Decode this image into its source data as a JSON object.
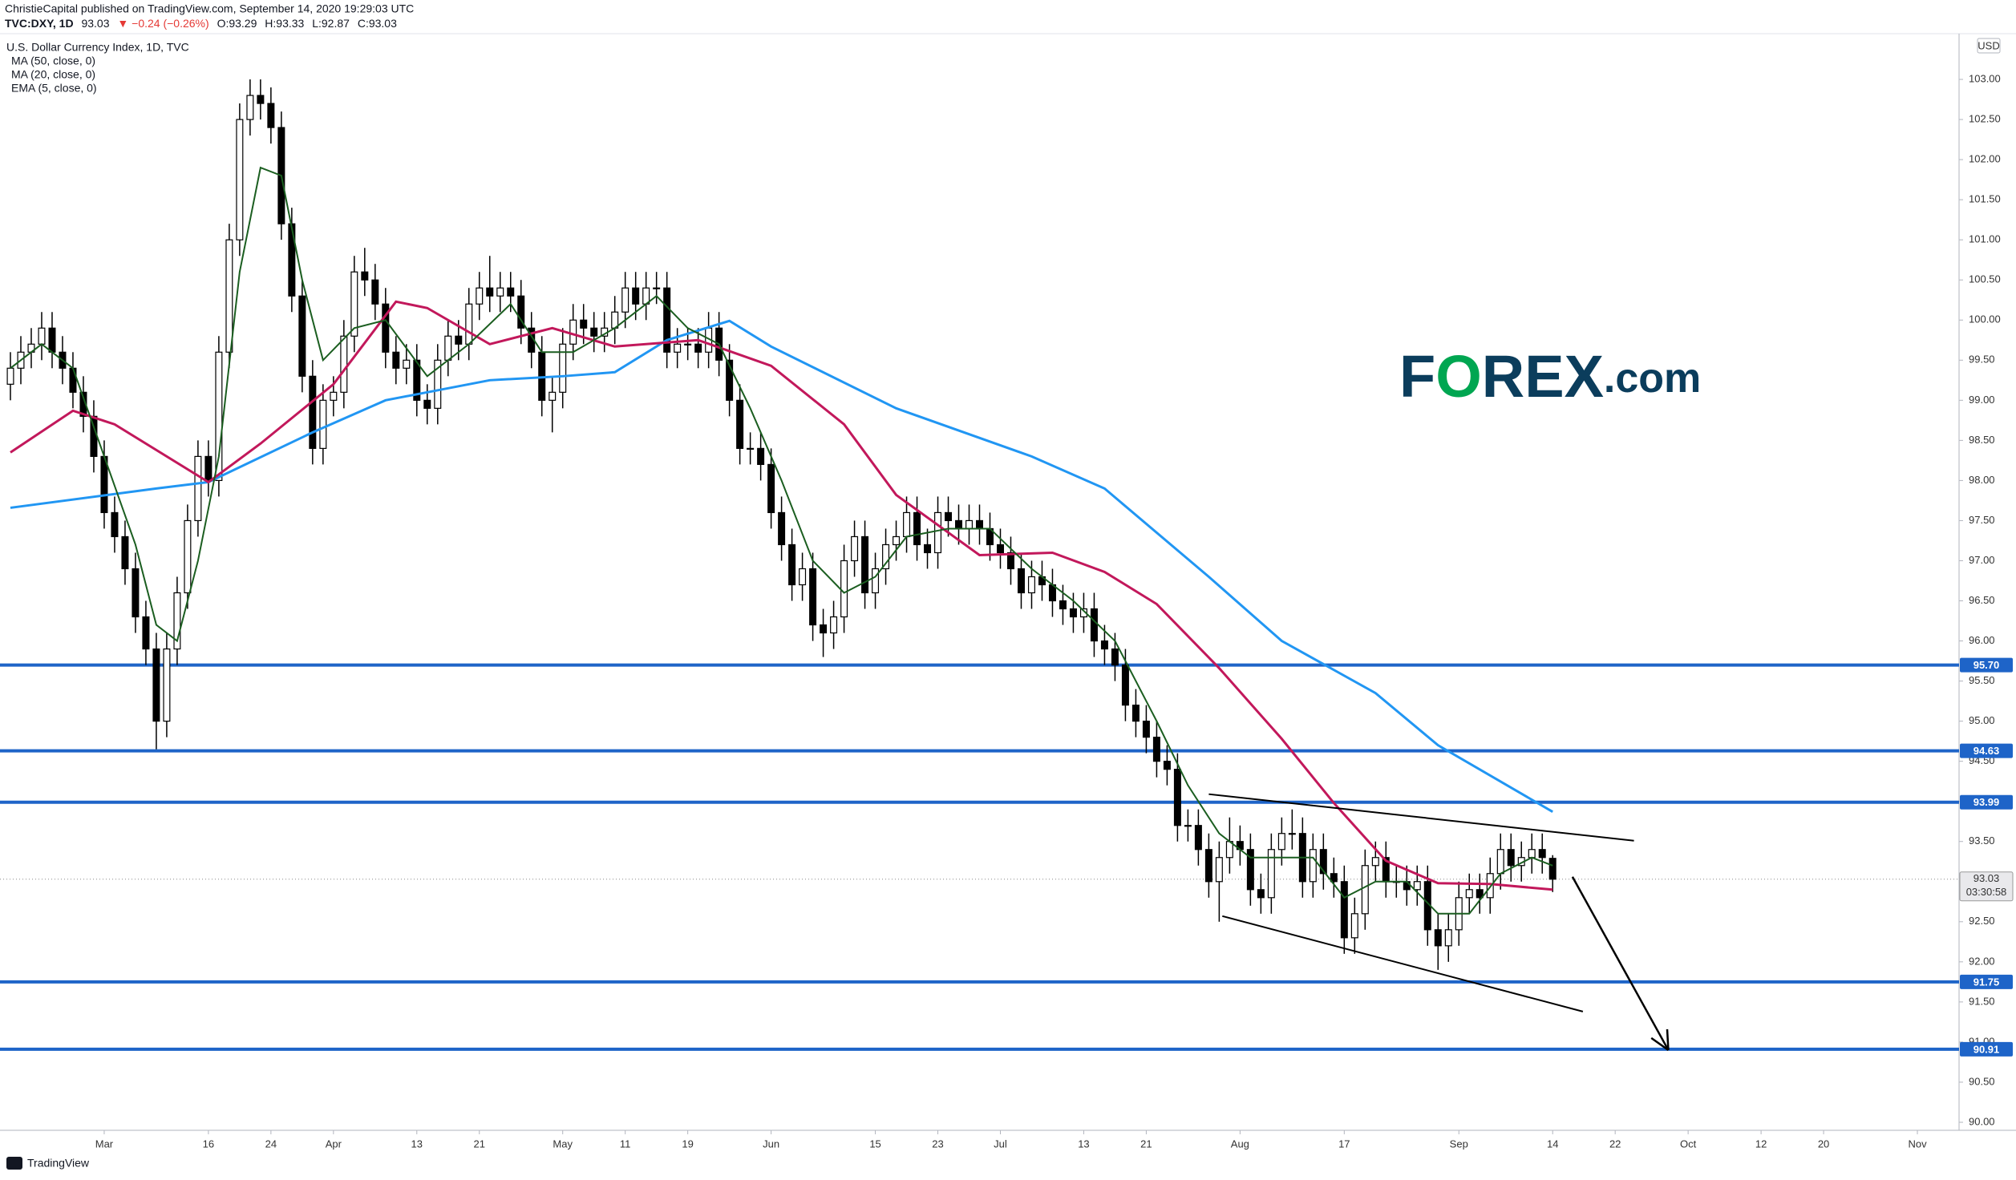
{
  "header": {
    "line1": "ChristieCapital published on TradingView.com, September 14, 2020 19:29:03 UTC",
    "line2": [
      "TVC:DXY, 1D",
      "93.03",
      "▼ −0.24 (−0.26%)",
      "O:93.29",
      "H:93.33",
      "L:92.87",
      "C:93.03"
    ]
  },
  "logo": [
    "F",
    "O",
    "REX",
    ".com"
  ],
  "footer": "TradingView",
  "chart_data": {
    "type": "candlestick",
    "title": "U.S. Dollar Currency Index, 1D, TVC",
    "currency": "USD",
    "up_color": "#ffffff",
    "down_color": "#000000",
    "open": [
      99.2,
      99.4,
      99.6,
      99.7,
      99.9,
      99.6,
      99.4,
      99.1,
      98.8,
      98.3,
      97.6,
      97.3,
      96.9,
      96.3,
      95.9,
      95,
      95.9,
      96.6,
      97.5,
      98.3,
      98,
      99.6,
      101,
      102.5,
      102.8,
      102.7,
      102.4,
      101.2,
      100.3,
      99.3,
      98.4,
      99,
      99.1,
      99.8,
      100.6,
      100.5,
      100.2,
      99.6,
      99.4,
      99.5,
      99,
      98.9,
      99.5,
      99.8,
      99.7,
      100.2,
      100.4,
      100.3,
      100.4,
      100.3,
      99.9,
      99.6,
      99,
      99.1,
      99.7,
      100,
      99.9,
      99.8,
      99.9,
      100.1,
      100.4,
      100.2,
      100.4,
      100.4,
      99.6,
      99.7,
      99.7,
      99.6,
      99.9,
      99.5,
      99,
      98.4,
      98.4,
      98.2,
      97.6,
      97.2,
      96.7,
      96.9,
      96.2,
      96.1,
      96.3,
      97,
      97.3,
      96.6,
      96.9,
      97.2,
      97.3,
      97.6,
      97.2,
      97.1,
      97.6,
      97.5,
      97.4,
      97.5,
      97.4,
      97.2,
      97.1,
      96.9,
      96.6,
      96.8,
      96.7,
      96.5,
      96.4,
      96.3,
      96.4,
      96,
      95.9,
      95.7,
      95.2,
      95,
      94.8,
      94.5,
      94.4,
      93.7,
      93.7,
      93.4,
      93,
      93.3,
      93.5,
      93.4,
      92.9,
      92.8,
      93.4,
      93.6,
      93.6,
      93,
      93.4,
      93.1,
      93,
      92.3,
      92.6,
      93.2,
      93.3,
      93,
      93,
      92.9,
      93,
      92.4,
      92.2,
      92.4,
      92.8,
      92.9,
      92.8,
      93.1,
      93.4,
      93.2,
      93.3,
      93.4,
      93.29
    ],
    "high": [
      99.6,
      99.8,
      99.9,
      100.1,
      100.1,
      99.8,
      99.6,
      99.3,
      99,
      98.5,
      97.8,
      97.5,
      97.1,
      96.5,
      96.1,
      96.1,
      96.8,
      97.7,
      98.5,
      98.5,
      99.8,
      101.2,
      102.7,
      103,
      103,
      102.9,
      102.6,
      101.4,
      100.5,
      99.5,
      99.2,
      99.3,
      100,
      100.8,
      100.9,
      100.7,
      100.4,
      99.8,
      99.7,
      99.7,
      99.2,
      99.7,
      100,
      100,
      100.4,
      100.6,
      100.8,
      100.6,
      100.6,
      100.5,
      100.1,
      99.8,
      99.3,
      99.9,
      100.2,
      100.2,
      100.1,
      100.1,
      100.3,
      100.6,
      100.6,
      100.6,
      100.6,
      100.6,
      99.9,
      99.9,
      99.9,
      100.1,
      100.1,
      99.7,
      99.2,
      98.6,
      98.6,
      98.4,
      97.8,
      97.4,
      97.1,
      97.1,
      96.4,
      96.5,
      97.2,
      97.5,
      97.5,
      97.1,
      97.4,
      97.5,
      97.8,
      97.8,
      97.4,
      97.8,
      97.8,
      97.7,
      97.7,
      97.7,
      97.6,
      97.4,
      97.3,
      97.1,
      97,
      97,
      96.9,
      96.7,
      96.6,
      96.6,
      96.6,
      96.2,
      96.1,
      95.9,
      95.4,
      95.2,
      95,
      94.7,
      94.6,
      93.9,
      93.9,
      93.6,
      93.5,
      93.8,
      93.7,
      93.6,
      93.1,
      93.6,
      93.8,
      93.9,
      93.8,
      93.6,
      93.6,
      93.3,
      93.2,
      92.8,
      93.4,
      93.5,
      93.5,
      93.2,
      93.2,
      93.2,
      93.2,
      92.6,
      92.6,
      93,
      93.1,
      93.1,
      93.3,
      93.6,
      93.6,
      93.5,
      93.6,
      93.6,
      93.33
    ],
    "low": [
      99,
      99.2,
      99.4,
      99.5,
      99.4,
      99.2,
      98.9,
      98.6,
      98.1,
      97.4,
      97.1,
      96.7,
      96.1,
      95.7,
      94.65,
      94.8,
      95.7,
      96.4,
      97.3,
      97.8,
      97.8,
      99.4,
      100.8,
      102.3,
      102.5,
      102.2,
      101,
      100.1,
      99.1,
      98.2,
      98.2,
      98.8,
      98.9,
      99.6,
      100.3,
      100,
      99.4,
      99.2,
      99.2,
      98.8,
      98.7,
      98.7,
      99.3,
      99.5,
      99.5,
      100,
      100.1,
      100.1,
      100.1,
      99.7,
      99.4,
      98.8,
      98.6,
      98.9,
      99.5,
      99.7,
      99.6,
      99.6,
      99.7,
      99.9,
      100,
      100,
      100.2,
      99.4,
      99.4,
      99.5,
      99.4,
      99.4,
      99.3,
      98.8,
      98.2,
      98.2,
      98,
      97.4,
      97,
      96.5,
      96.5,
      96,
      95.8,
      95.9,
      96.1,
      96.8,
      96.4,
      96.4,
      96.7,
      97,
      97.1,
      97,
      96.9,
      96.9,
      97.3,
      97.2,
      97.2,
      97.2,
      97,
      96.9,
      96.7,
      96.4,
      96.4,
      96.5,
      96.3,
      96.2,
      96.1,
      96.1,
      95.8,
      95.7,
      95.5,
      95,
      94.8,
      94.6,
      94.3,
      94.2,
      93.5,
      93.5,
      93.2,
      92.8,
      92.5,
      93.1,
      93.2,
      92.7,
      92.6,
      92.6,
      93.2,
      93.4,
      92.8,
      92.8,
      92.9,
      92.8,
      92.1,
      92.1,
      92.4,
      93,
      92.8,
      92.8,
      92.7,
      92.7,
      92.2,
      91.9,
      92,
      92.2,
      92.6,
      92.6,
      92.6,
      92.9,
      93,
      93,
      93.1,
      93.1,
      92.87
    ],
    "close": [
      99.4,
      99.6,
      99.7,
      99.9,
      99.6,
      99.4,
      99.1,
      98.8,
      98.3,
      97.6,
      97.3,
      96.9,
      96.3,
      95.9,
      95,
      95.9,
      96.6,
      97.5,
      98.3,
      98,
      99.6,
      101,
      102.5,
      102.8,
      102.7,
      102.4,
      101.2,
      100.3,
      99.3,
      98.4,
      99,
      99.1,
      99.8,
      100.6,
      100.5,
      100.2,
      99.6,
      99.4,
      99.5,
      99,
      98.9,
      99.5,
      99.8,
      99.7,
      100.2,
      100.4,
      100.3,
      100.4,
      100.3,
      99.9,
      99.6,
      99,
      99.1,
      99.7,
      100,
      99.9,
      99.8,
      99.9,
      100.1,
      100.4,
      100.2,
      100.4,
      100.4,
      99.6,
      99.7,
      99.7,
      99.6,
      99.9,
      99.5,
      99,
      98.4,
      98.4,
      98.2,
      97.6,
      97.2,
      96.7,
      96.9,
      96.2,
      96.1,
      96.3,
      97,
      97.3,
      96.6,
      96.9,
      97.2,
      97.3,
      97.6,
      97.2,
      97.1,
      97.6,
      97.5,
      97.4,
      97.5,
      97.4,
      97.2,
      97.1,
      96.9,
      96.6,
      96.8,
      96.7,
      96.5,
      96.4,
      96.3,
      96.4,
      96,
      95.9,
      95.7,
      95.2,
      95,
      94.8,
      94.5,
      94.4,
      93.7,
      93.7,
      93.4,
      93,
      93.3,
      93.5,
      93.4,
      92.9,
      92.8,
      93.4,
      93.6,
      93.6,
      93,
      93.4,
      93.1,
      93,
      92.3,
      92.6,
      93.2,
      93.3,
      93,
      93,
      92.9,
      93,
      92.4,
      92.2,
      92.4,
      92.8,
      92.9,
      92.8,
      93.1,
      93.4,
      93.2,
      93.3,
      93.4,
      93.3,
      93.03
    ],
    "lines": [
      {
        "name": "MA (50, close, 0)",
        "color": "#2196f3",
        "width": 3,
        "x": [
          0,
          14,
          19,
          29,
          36,
          46,
          53,
          58,
          63,
          69,
          73,
          85,
          98,
          105,
          115,
          122,
          131,
          137,
          148
        ],
        "values": [
          97.66,
          97.9,
          97.98,
          98.6,
          99.0,
          99.25,
          99.3,
          99.35,
          99.75,
          99.99,
          99.67,
          98.9,
          98.3,
          97.9,
          96.8,
          96.0,
          95.35,
          94.7,
          93.87
        ]
      },
      {
        "name": "MA (20, close, 0)",
        "color": "#c2185b",
        "width": 3,
        "x": [
          0,
          6,
          10,
          19,
          24,
          31,
          37,
          40,
          46,
          52,
          58,
          66,
          73,
          80,
          85,
          93,
          100,
          105,
          110,
          116,
          122,
          127,
          132,
          137,
          142,
          148
        ],
        "values": [
          98.35,
          98.87,
          98.7,
          97.98,
          98.46,
          99.2,
          100.23,
          100.15,
          99.7,
          99.9,
          99.67,
          99.75,
          99.43,
          98.7,
          97.82,
          97.07,
          97.1,
          96.86,
          96.46,
          95.66,
          94.78,
          93.98,
          93.26,
          92.98,
          92.97,
          92.9
        ]
      },
      {
        "name": "EMA (5, close, 0)",
        "color": "#1b5e20",
        "width": 2,
        "x": [
          0,
          3,
          6,
          9,
          12,
          14,
          16,
          18,
          20,
          22,
          24,
          26,
          28,
          30,
          33,
          36,
          40,
          44,
          48,
          51,
          54,
          58,
          62,
          65,
          68,
          71,
          74,
          77,
          80,
          83,
          86,
          90,
          94,
          98,
          102,
          106,
          110,
          113,
          116,
          119,
          122,
          125,
          128,
          131,
          134,
          137,
          140,
          143,
          146,
          148
        ],
        "values": [
          99.4,
          99.7,
          99.4,
          98.3,
          97.2,
          96.2,
          96.0,
          97.0,
          98.3,
          100.6,
          101.9,
          101.8,
          100.5,
          99.5,
          99.9,
          100.0,
          99.3,
          99.7,
          100.2,
          99.6,
          99.6,
          99.9,
          100.3,
          99.9,
          99.7,
          98.9,
          98.0,
          97.0,
          96.6,
          96.8,
          97.3,
          97.4,
          97.4,
          96.9,
          96.5,
          96.0,
          95.0,
          94.2,
          93.6,
          93.3,
          93.3,
          93.3,
          92.8,
          93.0,
          93.0,
          92.6,
          92.6,
          93.1,
          93.3,
          93.2
        ]
      }
    ],
    "levels": [
      {
        "value": 95.7,
        "label": "95.70"
      },
      94.63,
      93.99,
      91.75,
      90.91
    ],
    "level_color": "#1e64c8",
    "current": {
      "value": 93.03,
      "countdown": "03:30:58"
    },
    "trendlines": [
      {
        "x": [
          115,
          155.8
        ],
        "values": [
          94.09,
          93.51
        ]
      },
      {
        "x": [
          116.3,
          150.9
        ],
        "values": [
          92.57,
          91.38
        ]
      }
    ],
    "arrow": {
      "x": [
        149.9,
        159.1
      ],
      "values": [
        93.06,
        90.9
      ]
    },
    "xlim": [
      -1,
      187
    ],
    "ylim": [
      89.9,
      103.54
    ],
    "xticks": [
      {
        "value": 9,
        "label": "Mar"
      },
      {
        "value": 19,
        "label": "16"
      },
      {
        "value": 25,
        "label": "24"
      },
      {
        "value": 31,
        "label": "Apr"
      },
      {
        "value": 39,
        "label": "13"
      },
      {
        "value": 45,
        "label": "21"
      },
      {
        "value": 53,
        "label": "May"
      },
      {
        "value": 59,
        "label": "11"
      },
      {
        "value": 65,
        "label": "19"
      },
      {
        "value": 73,
        "label": "Jun"
      },
      {
        "value": 83,
        "label": "15"
      },
      {
        "value": 89,
        "label": "23"
      },
      {
        "value": 95,
        "label": "Jul"
      },
      {
        "value": 103,
        "label": "13"
      },
      {
        "value": 109,
        "label": "21"
      },
      {
        "value": 118,
        "label": "Aug"
      },
      {
        "value": 128,
        "label": "17"
      },
      {
        "value": 139,
        "label": "Sep"
      },
      {
        "value": 148,
        "label": "14"
      },
      {
        "value": 154,
        "label": "22"
      },
      {
        "value": 161,
        "label": "Oct"
      },
      {
        "value": 168,
        "label": "12"
      },
      {
        "value": 174,
        "label": "20"
      },
      {
        "value": 183,
        "label": "Nov"
      }
    ],
    "yticks": [
      {
        "value": 90,
        "label": "90.00"
      },
      {
        "value": 90.5,
        "label": "90.50"
      },
      {
        "value": 91,
        "label": "91.00"
      },
      {
        "value": 91.5,
        "label": "91.50"
      },
      {
        "value": 92,
        "label": "92.00"
      },
      {
        "value": 92.5,
        "label": "92.50"
      },
      {
        "value": 93,
        "label": "93.00"
      },
      {
        "value": 93.5,
        "label": "93.50"
      },
      {
        "value": 94,
        "label": "94.00"
      },
      {
        "value": 94.5,
        "label": "94.50"
      },
      {
        "value": 95,
        "label": "95.00"
      },
      {
        "value": 95.5,
        "label": "95.50"
      },
      {
        "value": 96,
        "label": "96.00"
      },
      {
        "value": 96.5,
        "label": "96.50"
      },
      {
        "value": 97,
        "label": "97.00"
      },
      {
        "value": 97.5,
        "label": "97.50"
      },
      {
        "value": 98,
        "label": "98.00"
      },
      {
        "value": 98.5,
        "label": "98.50"
      },
      {
        "value": 99,
        "label": "99.00"
      },
      {
        "value": 99.5,
        "label": "99.50"
      },
      {
        "value": 100,
        "label": "100.00"
      },
      {
        "value": 100.5,
        "label": "100.50"
      },
      {
        "value": 101,
        "label": "101.00"
      },
      {
        "value": 101.5,
        "label": "101.50"
      },
      {
        "value": 102,
        "label": "102.00"
      },
      {
        "value": 102.5,
        "label": "102.50"
      },
      {
        "value": 103,
        "label": "103.00"
      }
    ]
  }
}
